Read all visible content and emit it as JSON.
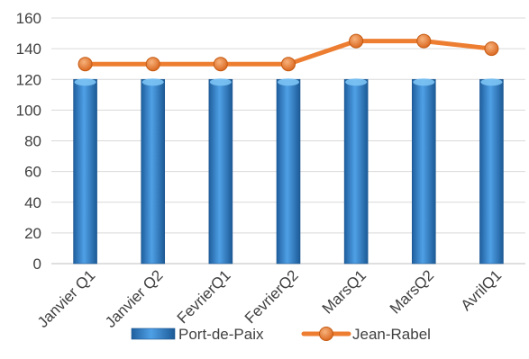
{
  "chart_data": {
    "type": "bar+line",
    "title": "",
    "xlabel": "",
    "ylabel": "",
    "ylim": [
      0,
      160
    ],
    "yticks": [
      0,
      20,
      40,
      60,
      80,
      100,
      120,
      140,
      160
    ],
    "grid": true,
    "legend_position": "bottom",
    "categories": [
      "Janvier Q1",
      "Janvier Q2",
      "FevrierQ1",
      "FevrierQ2",
      "MarsQ1",
      "MarsQ2",
      "AvrilQ1"
    ],
    "series": [
      {
        "name": "Port-de-Paix",
        "type": "bar",
        "color": "#2e75b6",
        "values": [
          120,
          120,
          120,
          120,
          120,
          120,
          120
        ]
      },
      {
        "name": "Jean-Rabel",
        "type": "line",
        "color": "#ed7d31",
        "values": [
          130,
          130,
          130,
          130,
          145,
          145,
          140
        ]
      }
    ]
  }
}
